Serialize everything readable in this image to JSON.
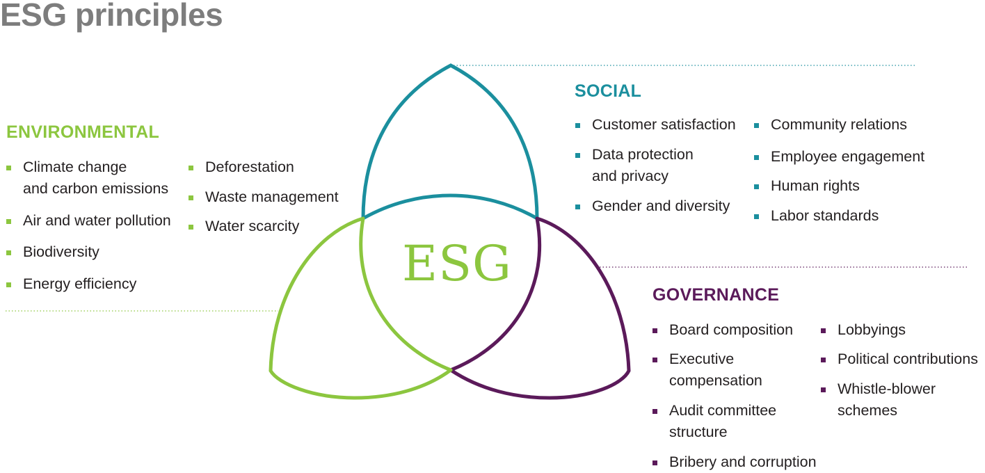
{
  "title": "ESG principles",
  "center_label": "ESG",
  "colors": {
    "environmental": "#8cc63f",
    "social": "#1b8f9e",
    "governance": "#5b1a5a",
    "title": "#7d7d7d"
  },
  "environmental": {
    "heading": "ENVIRONMENTAL",
    "col1": [
      [
        "Climate change",
        "and carbon emissions"
      ],
      [
        "Air and water pollution"
      ],
      [
        "Biodiversity"
      ],
      [
        "Energy efficiency"
      ]
    ],
    "col2": [
      [
        "Deforestation"
      ],
      [
        "Waste management"
      ],
      [
        "Water scarcity"
      ]
    ]
  },
  "social": {
    "heading": "SOCIAL",
    "col1": [
      [
        "Customer satisfaction"
      ],
      [
        "Data protection",
        "and privacy"
      ],
      [
        "Gender and diversity"
      ]
    ],
    "col2": [
      [
        "Community relations"
      ],
      [
        "Employee engagement"
      ],
      [
        "Human rights"
      ],
      [
        "Labor standards"
      ]
    ]
  },
  "governance": {
    "heading": "GOVERNANCE",
    "col1": [
      [
        "Board composition"
      ],
      [
        "Executive",
        "compensation"
      ],
      [
        "Audit committee",
        "structure"
      ],
      [
        "Bribery and corruption"
      ]
    ],
    "col2": [
      [
        "Lobbyings"
      ],
      [
        "Political contributions"
      ],
      [
        "Whistle-blower",
        "schemes"
      ]
    ]
  }
}
